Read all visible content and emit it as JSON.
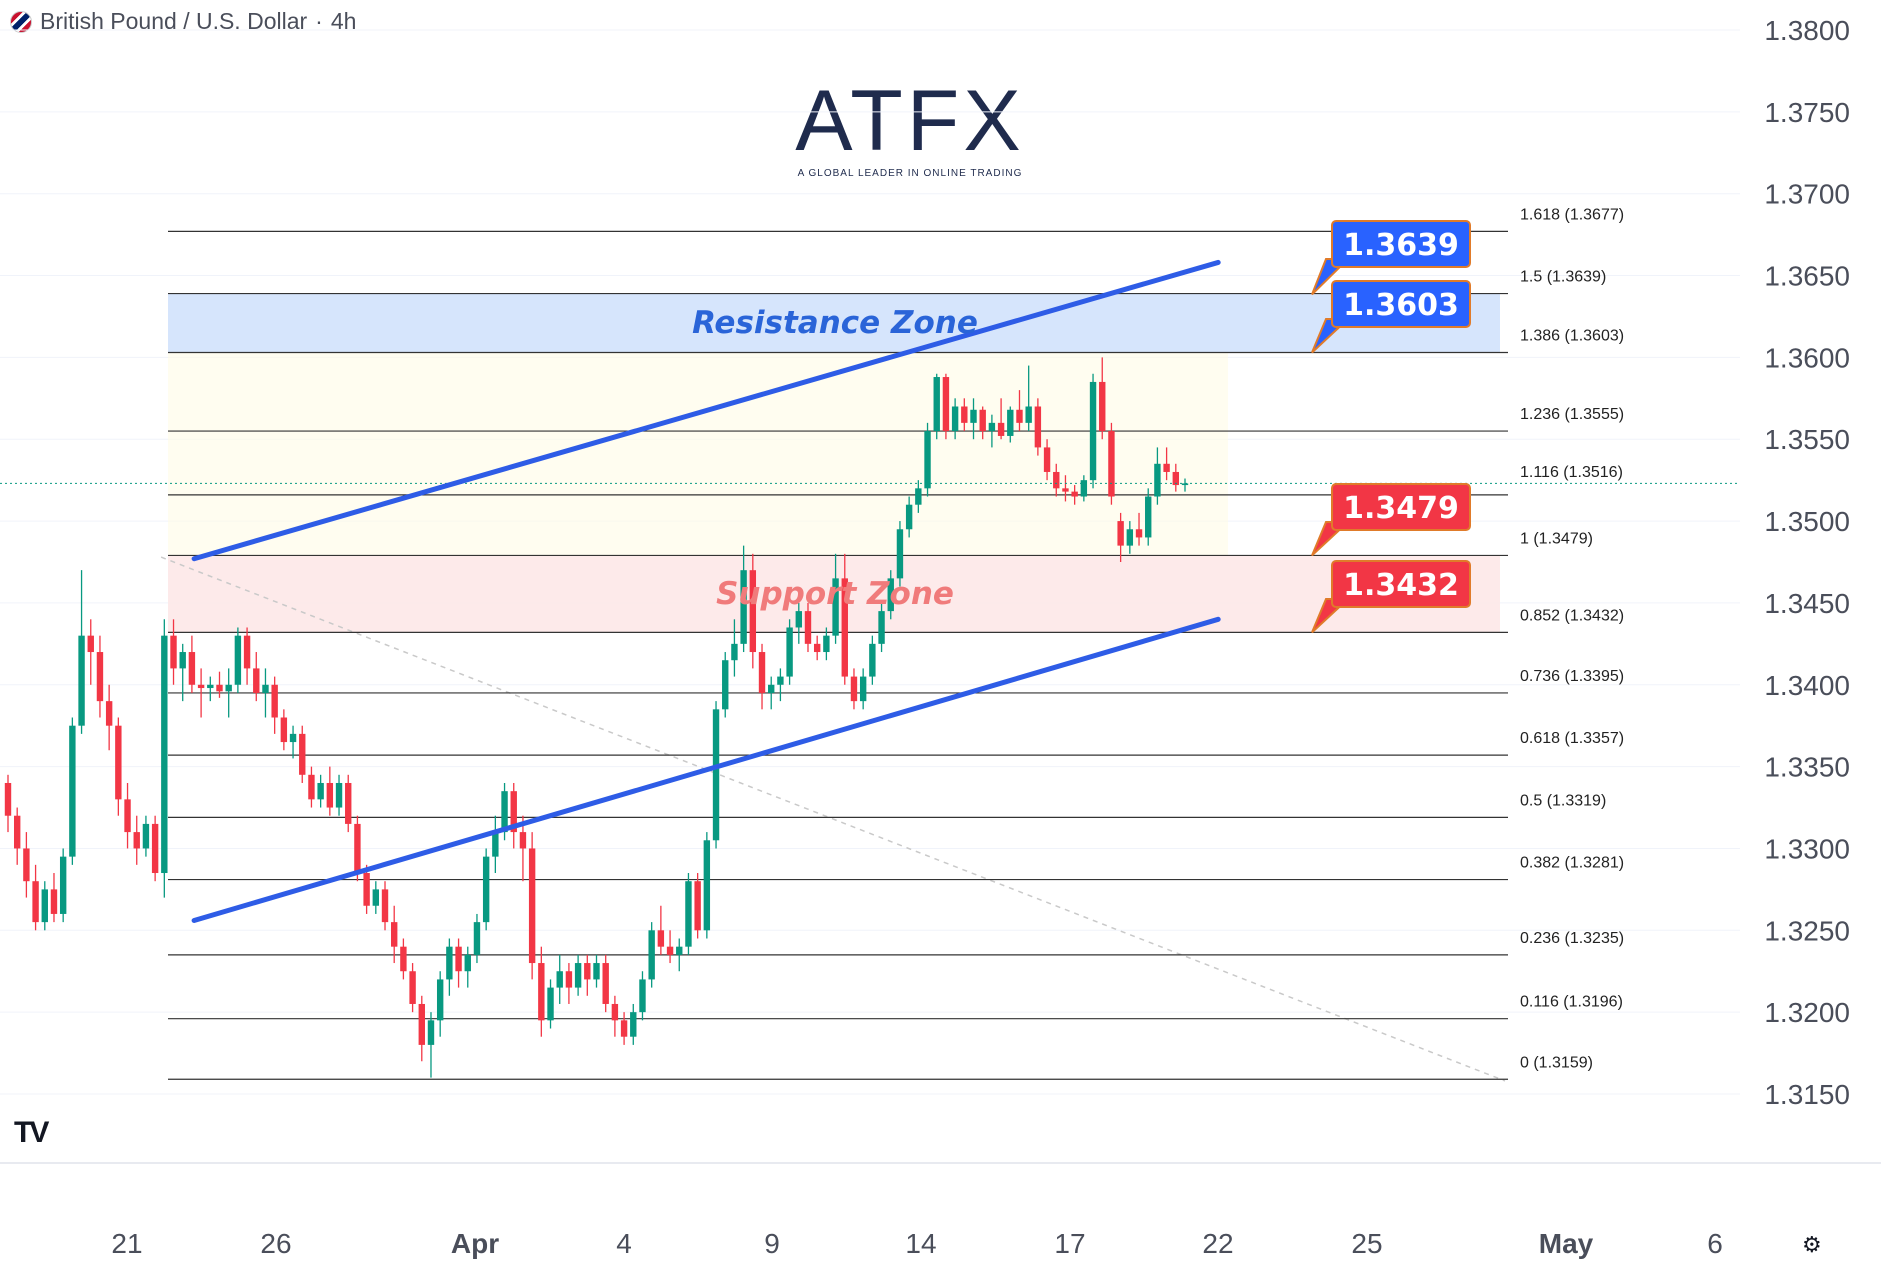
{
  "header": {
    "symbol": "British Pound / U.S. Dollar",
    "separator": "·",
    "interval": "4h"
  },
  "logo": {
    "name": "ATFX",
    "tagline": "A GLOBAL LEADER IN ONLINE TRADING"
  },
  "chart_data": {
    "type": "candlestick",
    "title": "",
    "y_axis": {
      "position": "right",
      "ticks": [
        1.315,
        1.32,
        1.325,
        1.33,
        1.335,
        1.34,
        1.345,
        1.35,
        1.355,
        1.36,
        1.365,
        1.37,
        1.375,
        1.38
      ]
    },
    "x_axis": {
      "ticks": [
        "21",
        "26",
        "Apr",
        "4",
        "9",
        "14",
        "17",
        "22",
        "25",
        "May",
        "6"
      ]
    },
    "fibonacci": [
      {
        "ratio": "1.618",
        "price": 1.3677,
        "label": "1.618 (1.3677)"
      },
      {
        "ratio": "1.5",
        "price": 1.3639,
        "label": "1.5 (1.3639)"
      },
      {
        "ratio": "1.386",
        "price": 1.3603,
        "label": "1.386 (1.3603)"
      },
      {
        "ratio": "1.236",
        "price": 1.3555,
        "label": "1.236 (1.3555)"
      },
      {
        "ratio": "1.116",
        "price": 1.3516,
        "label": "1.116 (1.3516)"
      },
      {
        "ratio": "1",
        "price": 1.3479,
        "label": "1 (1.3479)"
      },
      {
        "ratio": "0.852",
        "price": 1.3432,
        "label": "0.852 (1.3432)"
      },
      {
        "ratio": "0.736",
        "price": 1.3395,
        "label": "0.736 (1.3395)"
      },
      {
        "ratio": "0.618",
        "price": 1.3357,
        "label": "0.618 (1.3357)"
      },
      {
        "ratio": "0.5",
        "price": 1.3319,
        "label": "0.5 (1.3319)"
      },
      {
        "ratio": "0.382",
        "price": 1.3281,
        "label": "0.382 (1.3281)"
      },
      {
        "ratio": "0.236",
        "price": 1.3235,
        "label": "0.236 (1.3235)"
      },
      {
        "ratio": "0.116",
        "price": 1.3196,
        "label": "0.116 (1.3196)"
      },
      {
        "ratio": "0",
        "price": 1.3159,
        "label": "0 (1.3159)"
      }
    ],
    "zones": [
      {
        "name": "Resistance Zone",
        "from": 1.3603,
        "to": 1.3639,
        "color": "#cfe0fb",
        "text_color": "#2a64d8"
      },
      {
        "name": "Support Zone",
        "from": 1.3432,
        "to": 1.3479,
        "color": "#fde6e6",
        "text_color": "#f07b7b"
      }
    ],
    "callouts": [
      {
        "label": "1.3639",
        "price": 1.3639,
        "color": "#2962ff"
      },
      {
        "label": "1.3603",
        "price": 1.3603,
        "color": "#2962ff"
      },
      {
        "label": "1.3479",
        "price": 1.3479,
        "color": "#f23645"
      },
      {
        "label": "1.3432",
        "price": 1.3432,
        "color": "#f23645"
      }
    ],
    "channel_lines": [
      {
        "name": "upper",
        "from": {
          "date": "Mar 22",
          "price": 1.3477
        },
        "to": {
          "date": "Apr 22",
          "price": 1.3658
        }
      },
      {
        "name": "lower",
        "from": {
          "date": "Mar 22",
          "price": 1.3256
        },
        "to": {
          "date": "Apr 22",
          "price": 1.344
        }
      }
    ],
    "last_price": 1.3523,
    "colors": {
      "up": "#089981",
      "down": "#f23645",
      "channel": "#2e5ce6",
      "fib_line": "#333333"
    },
    "candles": [
      [
        1.334,
        1.3345,
        1.331,
        1.332
      ],
      [
        1.332,
        1.3325,
        1.329,
        1.33
      ],
      [
        1.33,
        1.331,
        1.327,
        1.328
      ],
      [
        1.328,
        1.329,
        1.325,
        1.3255
      ],
      [
        1.3255,
        1.328,
        1.325,
        1.3275
      ],
      [
        1.3275,
        1.3285,
        1.3255,
        1.326
      ],
      [
        1.326,
        1.33,
        1.3255,
        1.3295
      ],
      [
        1.3295,
        1.338,
        1.329,
        1.3375
      ],
      [
        1.3375,
        1.347,
        1.337,
        1.343
      ],
      [
        1.343,
        1.344,
        1.34,
        1.342
      ],
      [
        1.342,
        1.343,
        1.338,
        1.339
      ],
      [
        1.339,
        1.34,
        1.336,
        1.3375
      ],
      [
        1.3375,
        1.338,
        1.332,
        1.333
      ],
      [
        1.333,
        1.334,
        1.33,
        1.331
      ],
      [
        1.331,
        1.332,
        1.329,
        1.33
      ],
      [
        1.33,
        1.332,
        1.3295,
        1.3315
      ],
      [
        1.3315,
        1.332,
        1.328,
        1.3285
      ],
      [
        1.3285,
        1.344,
        1.327,
        1.343
      ],
      [
        1.343,
        1.344,
        1.34,
        1.341
      ],
      [
        1.341,
        1.3425,
        1.339,
        1.342
      ],
      [
        1.342,
        1.343,
        1.3395,
        1.34
      ],
      [
        1.34,
        1.341,
        1.338,
        1.3398
      ],
      [
        1.3398,
        1.3405,
        1.339,
        1.34
      ],
      [
        1.34,
        1.3408,
        1.3392,
        1.3396
      ],
      [
        1.3396,
        1.341,
        1.338,
        1.34
      ],
      [
        1.34,
        1.3435,
        1.3395,
        1.343
      ],
      [
        1.343,
        1.3435,
        1.34,
        1.341
      ],
      [
        1.341,
        1.342,
        1.339,
        1.3395
      ],
      [
        1.3395,
        1.341,
        1.338,
        1.34
      ],
      [
        1.34,
        1.3405,
        1.337,
        1.338
      ],
      [
        1.338,
        1.3385,
        1.336,
        1.3365
      ],
      [
        1.3365,
        1.3375,
        1.3355,
        1.337
      ],
      [
        1.337,
        1.3375,
        1.334,
        1.3345
      ],
      [
        1.3345,
        1.335,
        1.3325,
        1.333
      ],
      [
        1.333,
        1.3345,
        1.3325,
        1.334
      ],
      [
        1.334,
        1.335,
        1.332,
        1.3325
      ],
      [
        1.3325,
        1.3345,
        1.332,
        1.334
      ],
      [
        1.334,
        1.3345,
        1.331,
        1.3315
      ],
      [
        1.3315,
        1.332,
        1.328,
        1.3285
      ],
      [
        1.3285,
        1.329,
        1.326,
        1.3265
      ],
      [
        1.3265,
        1.328,
        1.326,
        1.3275
      ],
      [
        1.3275,
        1.328,
        1.325,
        1.3255
      ],
      [
        1.3255,
        1.3265,
        1.323,
        1.324
      ],
      [
        1.324,
        1.3245,
        1.322,
        1.3225
      ],
      [
        1.3225,
        1.323,
        1.32,
        1.3205
      ],
      [
        1.3205,
        1.321,
        1.317,
        1.318
      ],
      [
        1.318,
        1.32,
        1.316,
        1.3195
      ],
      [
        1.3195,
        1.3225,
        1.3185,
        1.322
      ],
      [
        1.322,
        1.3245,
        1.321,
        1.324
      ],
      [
        1.324,
        1.3245,
        1.3215,
        1.3225
      ],
      [
        1.3225,
        1.324,
        1.3215,
        1.3235
      ],
      [
        1.3235,
        1.326,
        1.323,
        1.3255
      ],
      [
        1.3255,
        1.33,
        1.325,
        1.3295
      ],
      [
        1.3295,
        1.332,
        1.3285,
        1.331
      ],
      [
        1.331,
        1.334,
        1.3305,
        1.3335
      ],
      [
        1.3335,
        1.334,
        1.33,
        1.331
      ],
      [
        1.331,
        1.332,
        1.328,
        1.33
      ],
      [
        1.33,
        1.331,
        1.322,
        1.323
      ],
      [
        1.323,
        1.324,
        1.3185,
        1.3195
      ],
      [
        1.3195,
        1.322,
        1.319,
        1.3215
      ],
      [
        1.3215,
        1.3235,
        1.3205,
        1.3225
      ],
      [
        1.3225,
        1.323,
        1.3205,
        1.3215
      ],
      [
        1.3215,
        1.3235,
        1.321,
        1.323
      ],
      [
        1.323,
        1.3235,
        1.321,
        1.322
      ],
      [
        1.322,
        1.3235,
        1.3215,
        1.323
      ],
      [
        1.323,
        1.3235,
        1.32,
        1.3205
      ],
      [
        1.3205,
        1.321,
        1.3185,
        1.3195
      ],
      [
        1.3195,
        1.32,
        1.318,
        1.3185
      ],
      [
        1.3185,
        1.3205,
        1.318,
        1.32
      ],
      [
        1.32,
        1.3225,
        1.3195,
        1.322
      ],
      [
        1.322,
        1.3255,
        1.3215,
        1.325
      ],
      [
        1.325,
        1.3265,
        1.3235,
        1.324
      ],
      [
        1.324,
        1.325,
        1.323,
        1.3235
      ],
      [
        1.3235,
        1.3245,
        1.3225,
        1.324
      ],
      [
        1.324,
        1.3285,
        1.3235,
        1.328
      ],
      [
        1.328,
        1.3285,
        1.3245,
        1.325
      ],
      [
        1.325,
        1.331,
        1.3245,
        1.3305
      ],
      [
        1.3305,
        1.339,
        1.33,
        1.3385
      ],
      [
        1.3385,
        1.342,
        1.338,
        1.3415
      ],
      [
        1.3415,
        1.344,
        1.3405,
        1.3425
      ],
      [
        1.3425,
        1.3485,
        1.342,
        1.347
      ],
      [
        1.347,
        1.348,
        1.341,
        1.342
      ],
      [
        1.342,
        1.3425,
        1.3385,
        1.3395
      ],
      [
        1.3395,
        1.3405,
        1.3385,
        1.34
      ],
      [
        1.34,
        1.341,
        1.339,
        1.3405
      ],
      [
        1.3405,
        1.344,
        1.34,
        1.3435
      ],
      [
        1.3435,
        1.345,
        1.3425,
        1.3445
      ],
      [
        1.3445,
        1.345,
        1.342,
        1.3425
      ],
      [
        1.3425,
        1.343,
        1.3415,
        1.342
      ],
      [
        1.342,
        1.3435,
        1.3415,
        1.343
      ],
      [
        1.343,
        1.348,
        1.3425,
        1.3465
      ],
      [
        1.3465,
        1.348,
        1.34,
        1.3405
      ],
      [
        1.3405,
        1.341,
        1.3385,
        1.339
      ],
      [
        1.339,
        1.341,
        1.3385,
        1.3405
      ],
      [
        1.3405,
        1.343,
        1.34,
        1.3425
      ],
      [
        1.3425,
        1.345,
        1.342,
        1.3445
      ],
      [
        1.3445,
        1.347,
        1.344,
        1.3465
      ],
      [
        1.3465,
        1.35,
        1.346,
        1.3495
      ],
      [
        1.3495,
        1.3515,
        1.349,
        1.351
      ],
      [
        1.351,
        1.3525,
        1.3505,
        1.352
      ],
      [
        1.352,
        1.356,
        1.3515,
        1.3555
      ],
      [
        1.3555,
        1.359,
        1.355,
        1.3588
      ],
      [
        1.3588,
        1.359,
        1.355,
        1.3555
      ],
      [
        1.3555,
        1.3575,
        1.355,
        1.357
      ],
      [
        1.357,
        1.3575,
        1.3555,
        1.356
      ],
      [
        1.356,
        1.3575,
        1.355,
        1.3568
      ],
      [
        1.3568,
        1.357,
        1.355,
        1.3555
      ],
      [
        1.3555,
        1.3565,
        1.3545,
        1.356
      ],
      [
        1.356,
        1.3575,
        1.355,
        1.3552
      ],
      [
        1.3552,
        1.357,
        1.3548,
        1.3568
      ],
      [
        1.3568,
        1.358,
        1.3555,
        1.356
      ],
      [
        1.356,
        1.3595,
        1.3555,
        1.357
      ],
      [
        1.357,
        1.3575,
        1.354,
        1.3545
      ],
      [
        1.3545,
        1.355,
        1.3525,
        1.353
      ],
      [
        1.353,
        1.3535,
        1.3515,
        1.352
      ],
      [
        1.352,
        1.3528,
        1.3512,
        1.3518
      ],
      [
        1.3518,
        1.3522,
        1.351,
        1.3515
      ],
      [
        1.3515,
        1.3528,
        1.3512,
        1.3525
      ],
      [
        1.3525,
        1.359,
        1.352,
        1.3585
      ],
      [
        1.3585,
        1.36,
        1.355,
        1.3555
      ],
      [
        1.3555,
        1.356,
        1.351,
        1.3515
      ],
      [
        1.35,
        1.3505,
        1.3475,
        1.3485
      ],
      [
        1.3485,
        1.35,
        1.348,
        1.3495
      ],
      [
        1.3495,
        1.3505,
        1.3485,
        1.349
      ],
      [
        1.349,
        1.352,
        1.3485,
        1.3515
      ],
      [
        1.3515,
        1.3545,
        1.351,
        1.3535
      ],
      [
        1.3535,
        1.3545,
        1.3525,
        1.353
      ],
      [
        1.353,
        1.3535,
        1.3518,
        1.3522
      ],
      [
        1.3522,
        1.3526,
        1.3518,
        1.3523
      ]
    ]
  }
}
